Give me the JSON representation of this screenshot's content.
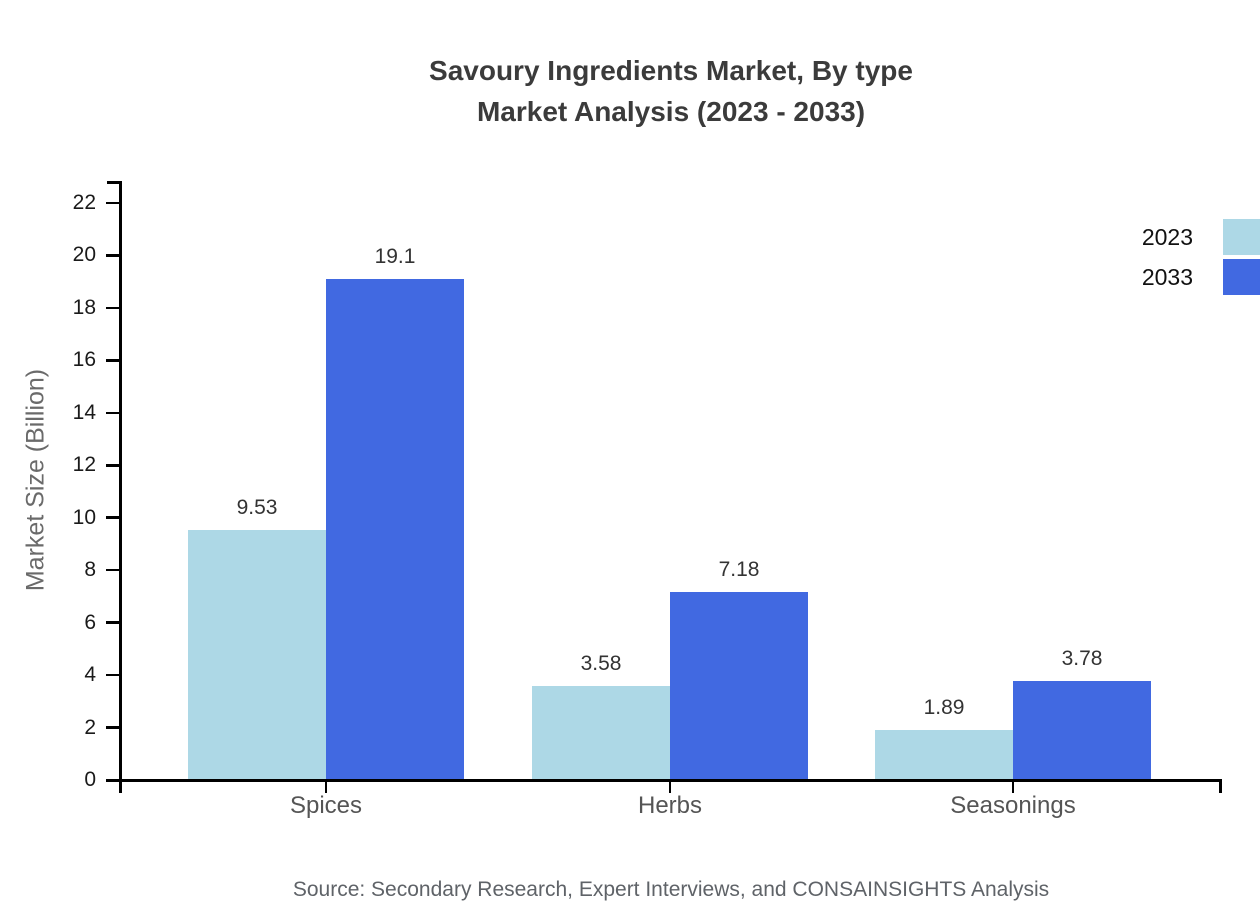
{
  "title": {
    "line1": "Savoury Ingredients Market, By type",
    "line2": "Market Analysis (2023 - 2033)"
  },
  "source_note": "Source: Secondary Research, Expert Interviews, and CONSAINSIGHTS Analysis",
  "chart_data": {
    "type": "bar",
    "title": "Savoury Ingredients Market, By type — Market Analysis (2023 - 2033)",
    "categories": [
      "Spices",
      "Herbs",
      "Seasonings"
    ],
    "series": [
      {
        "name": "2023",
        "color": "#ADD8E6",
        "values": [
          9.53,
          3.58,
          1.89
        ]
      },
      {
        "name": "2033",
        "color": "#4169E1",
        "values": [
          19.1,
          7.18,
          3.78
        ]
      }
    ],
    "xlabel": "",
    "ylabel": "Market Size (Billion)",
    "ylim": [
      0,
      22
    ],
    "ytick_step": 2,
    "grid": false,
    "legend_position": "top-right",
    "data_labels_shown": true,
    "axis_color": "#000000"
  }
}
